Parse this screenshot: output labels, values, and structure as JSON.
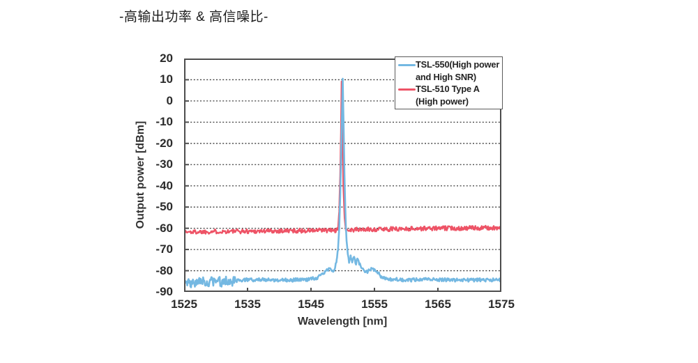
{
  "chart_data": {
    "type": "line",
    "title": "-高输出功率 & 高信噪比-",
    "xlabel": "Wavelength [nm]",
    "ylabel": "Output power [dBm]",
    "xlim": [
      1525,
      1575
    ],
    "ylim": [
      -90,
      20
    ],
    "xticks": [
      1525,
      1535,
      1545,
      1555,
      1565,
      1575
    ],
    "yticks": [
      20,
      10,
      0,
      -10,
      -20,
      -30,
      -40,
      -50,
      -60,
      -70,
      -80,
      -90
    ],
    "grid": "horizontal dotted lines at every 10 dBm",
    "legend_position": "top-right inside plot",
    "axis_color": "#4d4d4d",
    "grid_color": "#3d3d3d",
    "tick_label_color": "#2b2b2b",
    "series": [
      {
        "name": "TSL-510 Type A (High power)",
        "color": "#ee5366",
        "stroke_width": 2.4,
        "description": "Flat ASE noise band near -61 dBm across 1525-1575 nm with a narrow signal peak reaching about +9 dBm at 1549.8 nm (mostly hidden behind the TSL-550 trace); SNR about 70 dB",
        "envelope_points": [
          [
            1525,
            -61.8
          ],
          [
            1530,
            -61.5
          ],
          [
            1535,
            -61.4
          ],
          [
            1540,
            -61.2
          ],
          [
            1545,
            -61.1
          ],
          [
            1549.25,
            -61.0
          ],
          [
            1549.45,
            -52
          ],
          [
            1549.6,
            -35
          ],
          [
            1549.72,
            -15
          ],
          [
            1549.82,
            9
          ],
          [
            1549.95,
            -15
          ],
          [
            1550.1,
            -40
          ],
          [
            1550.3,
            -55
          ],
          [
            1550.5,
            -60.8
          ],
          [
            1555,
            -60.5
          ],
          [
            1560,
            -60.2
          ],
          [
            1565,
            -60.0
          ],
          [
            1570,
            -59.9
          ],
          [
            1575,
            -59.8
          ]
        ],
        "noise_zones": [
          {
            "to": 1549.3,
            "amp": 1.05
          },
          {
            "to": 1550.5,
            "amp": 0.2
          },
          {
            "to": 1575.2,
            "amp": 1.05
          }
        ]
      },
      {
        "name": "TSL-550 (High power and High SNR)",
        "color": "#74b8e2",
        "stroke_width": 2.6,
        "description": "Noise floor near -84.5 dBm (rougher, down to -89 dBm, between 1525-1533 nm), broad pedestal with side bumps around -74 to -80 dBm near the carrier, and a narrow signal peak reaching about +10.5 dBm at 1550 nm; SNR about 95 dB",
        "envelope_points": [
          [
            1525,
            -85.5
          ],
          [
            1533,
            -85.0
          ],
          [
            1534,
            -84.3
          ],
          [
            1538,
            -84.2
          ],
          [
            1541,
            -84.5
          ],
          [
            1544,
            -84.2
          ],
          [
            1545.8,
            -83.5
          ],
          [
            1546.8,
            -81.5
          ],
          [
            1547.4,
            -80.0
          ],
          [
            1547.9,
            -79.3
          ],
          [
            1548.4,
            -80.3
          ],
          [
            1548.8,
            -78.5
          ],
          [
            1549.05,
            -75
          ],
          [
            1549.25,
            -70
          ],
          [
            1549.45,
            -60
          ],
          [
            1549.6,
            -45
          ],
          [
            1549.75,
            -25
          ],
          [
            1549.87,
            -8
          ],
          [
            1550.0,
            10.5
          ],
          [
            1550.13,
            -10
          ],
          [
            1550.28,
            -35
          ],
          [
            1550.45,
            -55
          ],
          [
            1550.6,
            -66
          ],
          [
            1550.8,
            -72
          ],
          [
            1551.0,
            -75.5
          ],
          [
            1551.25,
            -73.5
          ],
          [
            1551.5,
            -76.0
          ],
          [
            1551.8,
            -74.0
          ],
          [
            1552.1,
            -76.5
          ],
          [
            1552.4,
            -74.5
          ],
          [
            1552.7,
            -77.0
          ],
          [
            1553.1,
            -79.0
          ],
          [
            1553.6,
            -81.0
          ],
          [
            1554.1,
            -80.0
          ],
          [
            1554.5,
            -78.8
          ],
          [
            1554.9,
            -79.5
          ],
          [
            1555.4,
            -80.5
          ],
          [
            1556.0,
            -82.5
          ],
          [
            1557.0,
            -84.0
          ],
          [
            1560,
            -84.3
          ],
          [
            1565,
            -84.2
          ],
          [
            1570,
            -84.4
          ],
          [
            1575,
            -84.3
          ]
        ],
        "noise_zones": [
          {
            "to": 1533,
            "amp": 2.4
          },
          {
            "to": 1546,
            "amp": 0.9
          },
          {
            "to": 1549.3,
            "amp": 0.7
          },
          {
            "to": 1550.7,
            "amp": 0.25
          },
          {
            "to": 1553.5,
            "amp": 1.0
          },
          {
            "to": 1557,
            "amp": 0.8
          },
          {
            "to": 1575.2,
            "amp": 0.85
          }
        ]
      }
    ]
  },
  "legend": {
    "items": [
      {
        "lines": [
          "TSL-550(High power",
          "and High SNR)"
        ],
        "color": "#74b8e2"
      },
      {
        "lines": [
          "TSL-510 Type A",
          "(High power)"
        ],
        "color": "#ee5366"
      }
    ]
  }
}
